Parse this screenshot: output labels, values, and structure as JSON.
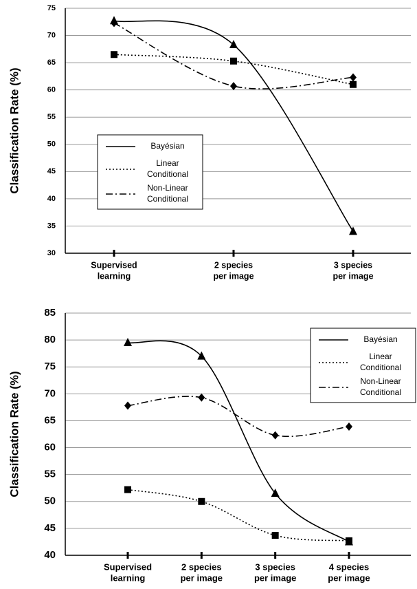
{
  "chart_data": [
    {
      "type": "line",
      "ylabel": "Classification Rate (%)",
      "categories": [
        [
          "Supervised",
          "learning"
        ],
        [
          "2 species",
          "per image"
        ],
        [
          "3 species",
          "per image"
        ]
      ],
      "ylim": [
        30,
        75
      ],
      "yticks": [
        30,
        35,
        40,
        45,
        50,
        55,
        60,
        65,
        70,
        75
      ],
      "grid": true,
      "legend": "center-left",
      "series": [
        {
          "name": [
            "Bayésian"
          ],
          "color": "#000000",
          "linestyle": "solid",
          "marker": "triangle",
          "values": [
            72.7,
            68.3,
            34
          ]
        },
        {
          "name": [
            "Linear",
            "Conditional"
          ],
          "color": "#000000",
          "linestyle": "dotted",
          "marker": "square",
          "values": [
            66.5,
            65.3,
            61
          ]
        },
        {
          "name": [
            "Non-Linear",
            "Conditional"
          ],
          "color": "#000000",
          "linestyle": "dashdot",
          "marker": "diamond",
          "values": [
            72.3,
            60.7,
            62.3
          ]
        }
      ]
    },
    {
      "type": "line",
      "ylabel": "Classification Rate (%)",
      "categories": [
        [
          "Supervised",
          "learning"
        ],
        [
          "2 species",
          "per image"
        ],
        [
          "3 species",
          "per image"
        ],
        [
          "4 species",
          "per image"
        ]
      ],
      "ylim": [
        40,
        85
      ],
      "yticks": [
        40,
        45,
        50,
        55,
        60,
        65,
        70,
        75,
        80,
        85
      ],
      "grid": true,
      "legend": "upper-right",
      "series": [
        {
          "name": [
            "Bayésian"
          ],
          "color": "#000000",
          "linestyle": "solid",
          "marker": "triangle",
          "values": [
            79.5,
            77,
            51.5,
            42.5
          ]
        },
        {
          "name": [
            "Linear",
            "Conditional"
          ],
          "color": "#000000",
          "linestyle": "dotted",
          "marker": "square",
          "values": [
            52.2,
            50,
            43.7,
            42.7
          ]
        },
        {
          "name": [
            "Non-Linear",
            "Conditional"
          ],
          "color": "#000000",
          "linestyle": "dashdot",
          "marker": "diamond",
          "values": [
            67.8,
            69.3,
            62.3,
            63.9
          ]
        }
      ]
    }
  ]
}
